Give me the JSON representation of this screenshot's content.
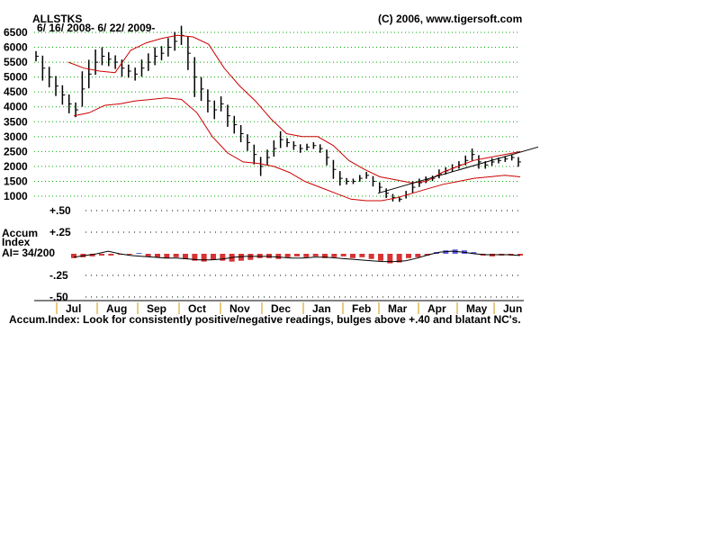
{
  "header": {
    "ticker": "ALLSTKS",
    "date_range": "6/ 16/ 2008- 6/ 22/ 2009-",
    "copyright": "(C) 2006, www.tigersoft.com"
  },
  "indicator": {
    "label_line1": "Accum",
    "label_line2": "Index",
    "ai_label": "AI= 34/200",
    "note": "Accum.Index: Look for consistently positive/negative readings, bulges above +.40 and blatant NC's."
  },
  "colors": {
    "price_bars": "#000000",
    "bands": "#cc0000",
    "accum_negative": "#cc0000",
    "accum_positive": "#3333cc",
    "grid": "#00aa00",
    "month_ticks": "#cc9900"
  },
  "chart_data": [
    {
      "type": "line",
      "title": "ALLSTKS",
      "xlabel": "",
      "ylabel": "",
      "x_range": [
        "2008-06-16",
        "2009-06-22"
      ],
      "ylim": [
        1000,
        6500
      ],
      "y_ticks": [
        6500,
        6000,
        5500,
        5000,
        4500,
        4000,
        3500,
        3000,
        2500,
        2000,
        1500,
        1000
      ],
      "x_tick_labels": [
        "Jul",
        "Aug",
        "Sep",
        "Oct",
        "Nov",
        "Dec",
        "Jan",
        "Feb",
        "Mar",
        "Apr",
        "May",
        "Jun"
      ],
      "grid": true,
      "price": [
        5700,
        5300,
        5000,
        4700,
        4400,
        4100,
        3900,
        4600,
        5100,
        5500,
        5700,
        5600,
        5500,
        5300,
        5200,
        5100,
        5300,
        5500,
        5700,
        5800,
        6000,
        6200,
        6400,
        5800,
        5000,
        4600,
        4200,
        3900,
        4100,
        3700,
        3400,
        3100,
        2800,
        2400,
        2000,
        2300,
        2600,
        2900,
        2800,
        2700,
        2600,
        2650,
        2700,
        2600,
        2300,
        1900,
        1600,
        1500,
        1500,
        1600,
        1700,
        1500,
        1300,
        1100,
        950,
        900,
        1050,
        1300,
        1450,
        1550,
        1600,
        1750,
        1850,
        1950,
        2050,
        2200,
        2400,
        2150,
        2050,
        2150,
        2200,
        2250,
        2300,
        2150
      ],
      "upper_band": [
        5500,
        5300,
        5200,
        5150,
        5900,
        6150,
        6300,
        6400,
        6350,
        6100,
        5300,
        4700,
        4200,
        3600,
        3100,
        3000,
        3000,
        2700,
        2200,
        1900,
        1650,
        1550,
        1450,
        1500,
        1800,
        2000,
        2200,
        2300,
        2400,
        2500
      ],
      "lower_band": [
        3700,
        3800,
        4050,
        4100,
        4200,
        4250,
        4300,
        4250,
        3800,
        3000,
        2450,
        2150,
        2100,
        2000,
        1800,
        1500,
        1300,
        1100,
        900,
        850,
        850,
        950,
        1100,
        1250,
        1400,
        1500,
        1600,
        1650,
        1700,
        1650
      ],
      "trendline": [
        [
          1050,
          1100
        ],
        [
          2400,
          2350
        ]
      ]
    },
    {
      "type": "bar",
      "title": "",
      "xlabel": "",
      "ylabel": "",
      "ylim": [
        -0.5,
        0.5
      ],
      "y_ticks": [
        "+.50",
        "+.25",
        "-.25",
        "-.50"
      ],
      "y_tick_values": [
        0.5,
        0.25,
        -0.25,
        -0.5
      ],
      "grid": true,
      "values": [
        -0.05,
        -0.04,
        -0.03,
        -0.02,
        -0.02,
        -0.01,
        -0.01,
        0.01,
        -0.03,
        -0.04,
        -0.05,
        -0.04,
        -0.06,
        -0.08,
        -0.09,
        -0.07,
        -0.08,
        -0.09,
        -0.08,
        -0.07,
        -0.05,
        -0.05,
        -0.06,
        -0.04,
        -0.03,
        -0.04,
        -0.03,
        -0.05,
        -0.04,
        -0.03,
        -0.05,
        -0.04,
        -0.06,
        -0.08,
        -0.11,
        -0.1,
        -0.05,
        -0.04,
        -0.02,
        0.02,
        0.04,
        0.05,
        0.04,
        0.02,
        -0.02,
        -0.03,
        -0.02,
        -0.02,
        -0.02
      ],
      "comparison_line": [
        -0.04,
        -0.02,
        0.0,
        0.03,
        0.0,
        -0.02,
        -0.03,
        -0.04,
        -0.05,
        -0.05,
        -0.06,
        -0.07,
        -0.07,
        -0.06,
        -0.04,
        -0.03,
        -0.03,
        -0.03,
        -0.04,
        -0.05,
        -0.05,
        -0.04,
        -0.04,
        -0.05,
        -0.06,
        -0.07,
        -0.08,
        -0.09,
        -0.09,
        -0.08,
        -0.05,
        -0.01,
        0.02,
        0.03,
        0.02,
        0.0,
        -0.01,
        -0.01,
        -0.01,
        -0.02
      ]
    }
  ]
}
